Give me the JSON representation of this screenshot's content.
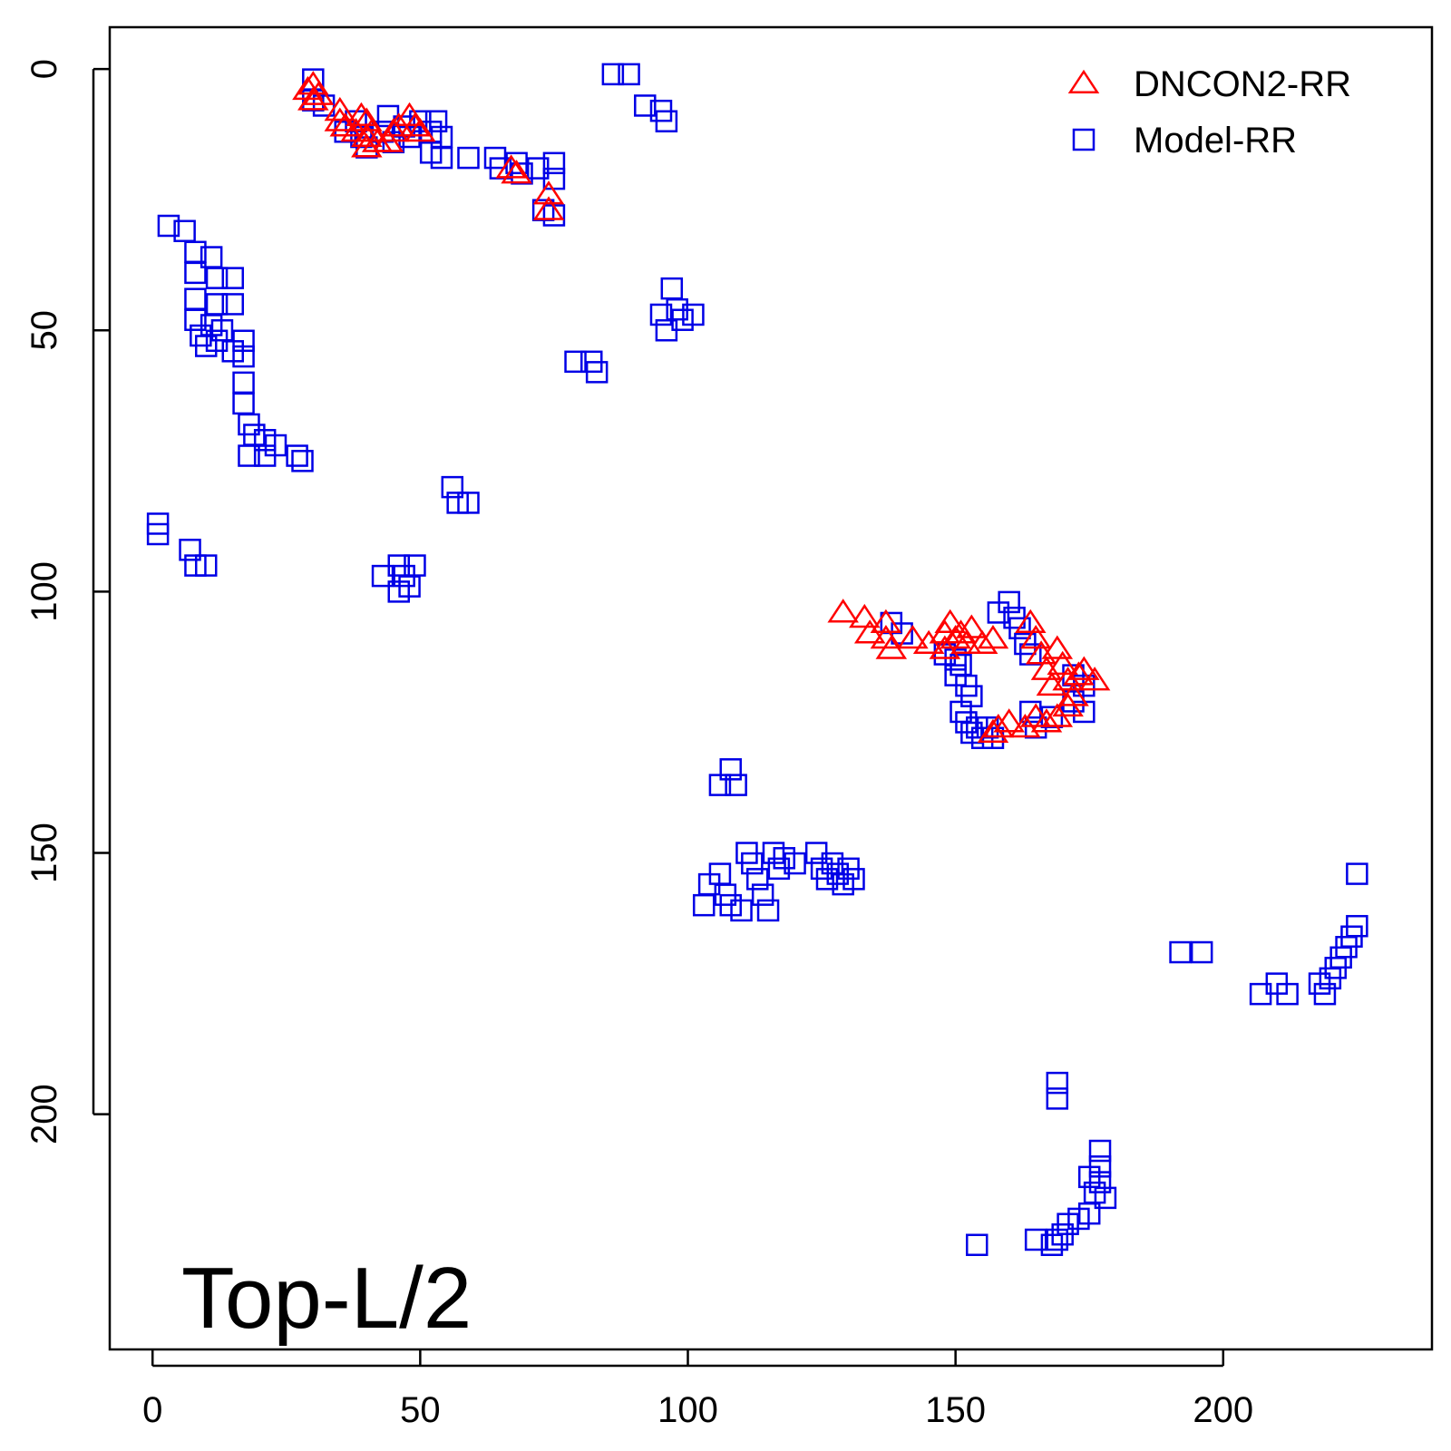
{
  "chart_data": {
    "type": "scatter",
    "title": "",
    "xlabel": "",
    "ylabel": "",
    "xlim": [
      -8,
      239
    ],
    "ylim": [
      245,
      -8
    ],
    "y_reversed": true,
    "grid": false,
    "legend_position": "top-right",
    "x_ticks": [
      "0",
      "50",
      "100",
      "150",
      "200"
    ],
    "y_ticks": [
      "0",
      "50",
      "100",
      "150",
      "200"
    ],
    "annotation": "Top-L/2",
    "colors": {
      "dncon2": "#ff0000",
      "model": "#0000e6"
    },
    "series": [
      {
        "name": "DNCON2-RR",
        "marker": "triangle",
        "points": [
          [
            29,
            4
          ],
          [
            30,
            3
          ],
          [
            30,
            6
          ],
          [
            31,
            5
          ],
          [
            35,
            8
          ],
          [
            35,
            10
          ],
          [
            36,
            11
          ],
          [
            38,
            12
          ],
          [
            39,
            9
          ],
          [
            40,
            10
          ],
          [
            40,
            13
          ],
          [
            41,
            12
          ],
          [
            42,
            14
          ],
          [
            40,
            15
          ],
          [
            44,
            14
          ],
          [
            45,
            12
          ],
          [
            46,
            11
          ],
          [
            48,
            9
          ],
          [
            49,
            11
          ],
          [
            50,
            12
          ],
          [
            67,
            19
          ],
          [
            68,
            20
          ],
          [
            74,
            24
          ],
          [
            74,
            27
          ],
          [
            129,
            104
          ],
          [
            133,
            105
          ],
          [
            134,
            108
          ],
          [
            137,
            106
          ],
          [
            137,
            109
          ],
          [
            138,
            111
          ],
          [
            142,
            109
          ],
          [
            145,
            110
          ],
          [
            148,
            108
          ],
          [
            148,
            111
          ],
          [
            149,
            106
          ],
          [
            150,
            109
          ],
          [
            151,
            108
          ],
          [
            152,
            110
          ],
          [
            153,
            107
          ],
          [
            155,
            110
          ],
          [
            157,
            109
          ],
          [
            164,
            106
          ],
          [
            165,
            109
          ],
          [
            166,
            112
          ],
          [
            167,
            115
          ],
          [
            168,
            118
          ],
          [
            169,
            111
          ],
          [
            170,
            114
          ],
          [
            171,
            117
          ],
          [
            172,
            120
          ],
          [
            173,
            116
          ],
          [
            174,
            115
          ],
          [
            176,
            117
          ],
          [
            171,
            122
          ],
          [
            169,
            124
          ],
          [
            167,
            125
          ],
          [
            165,
            124
          ],
          [
            163,
            126
          ],
          [
            160,
            125
          ],
          [
            158,
            126
          ],
          [
            157,
            127
          ]
        ]
      },
      {
        "name": "Model-RR",
        "marker": "square",
        "points": [
          [
            30,
            2
          ],
          [
            30,
            6
          ],
          [
            32,
            7
          ],
          [
            36,
            12
          ],
          [
            38,
            10
          ],
          [
            39,
            13
          ],
          [
            40,
            15
          ],
          [
            43,
            12
          ],
          [
            44,
            9
          ],
          [
            45,
            14
          ],
          [
            47,
            11
          ],
          [
            48,
            13
          ],
          [
            50,
            10
          ],
          [
            52,
            12
          ],
          [
            53,
            10
          ],
          [
            54,
            13
          ],
          [
            52,
            16
          ],
          [
            54,
            17
          ],
          [
            59,
            17
          ],
          [
            64,
            17
          ],
          [
            65,
            19
          ],
          [
            68,
            18
          ],
          [
            69,
            20
          ],
          [
            72,
            19
          ],
          [
            75,
            18
          ],
          [
            75,
            21
          ],
          [
            73,
            27
          ],
          [
            75,
            28
          ],
          [
            86,
            1
          ],
          [
            89,
            1
          ],
          [
            92,
            7
          ],
          [
            95,
            8
          ],
          [
            96,
            10
          ],
          [
            3,
            30
          ],
          [
            6,
            31
          ],
          [
            8,
            35
          ],
          [
            11,
            36
          ],
          [
            8,
            39
          ],
          [
            12,
            40
          ],
          [
            15,
            40
          ],
          [
            8,
            44
          ],
          [
            12,
            45
          ],
          [
            15,
            45
          ],
          [
            8,
            48
          ],
          [
            11,
            49
          ],
          [
            13,
            50
          ],
          [
            9,
            51
          ],
          [
            12,
            52
          ],
          [
            17,
            52
          ],
          [
            10,
            53
          ],
          [
            15,
            54
          ],
          [
            17,
            55
          ],
          [
            17,
            60
          ],
          [
            17,
            64
          ],
          [
            18,
            68
          ],
          [
            19,
            70
          ],
          [
            21,
            71
          ],
          [
            18,
            74
          ],
          [
            21,
            74
          ],
          [
            23,
            72
          ],
          [
            27,
            74
          ],
          [
            28,
            75
          ],
          [
            1,
            87
          ],
          [
            1,
            89
          ],
          [
            7,
            92
          ],
          [
            8,
            95
          ],
          [
            10,
            95
          ],
          [
            43,
            97
          ],
          [
            46,
            95
          ],
          [
            47,
            97
          ],
          [
            48,
            99
          ],
          [
            46,
            100
          ],
          [
            49,
            95
          ],
          [
            56,
            80
          ],
          [
            57,
            83
          ],
          [
            59,
            83
          ],
          [
            79,
            56
          ],
          [
            82,
            56
          ],
          [
            83,
            58
          ],
          [
            97,
            42
          ],
          [
            98,
            46
          ],
          [
            95,
            47
          ],
          [
            96,
            50
          ],
          [
            99,
            48
          ],
          [
            101,
            47
          ],
          [
            103,
            160
          ],
          [
            104,
            156
          ],
          [
            106,
            154
          ],
          [
            107,
            158
          ],
          [
            108,
            160
          ],
          [
            110,
            161
          ],
          [
            111,
            150
          ],
          [
            112,
            152
          ],
          [
            113,
            155
          ],
          [
            114,
            158
          ],
          [
            115,
            161
          ],
          [
            116,
            150
          ],
          [
            117,
            153
          ],
          [
            118,
            151
          ],
          [
            120,
            152
          ],
          [
            106,
            137
          ],
          [
            108,
            134
          ],
          [
            109,
            137
          ],
          [
            124,
            150
          ],
          [
            125,
            153
          ],
          [
            126,
            155
          ],
          [
            127,
            152
          ],
          [
            128,
            154
          ],
          [
            129,
            156
          ],
          [
            130,
            153
          ],
          [
            131,
            155
          ],
          [
            138,
            106
          ],
          [
            140,
            108
          ],
          [
            148,
            112
          ],
          [
            150,
            113
          ],
          [
            151,
            114
          ],
          [
            150,
            116
          ],
          [
            152,
            118
          ],
          [
            153,
            120
          ],
          [
            151,
            123
          ],
          [
            152,
            125
          ],
          [
            153,
            127
          ],
          [
            154,
            126
          ],
          [
            155,
            128
          ],
          [
            156,
            126
          ],
          [
            157,
            128
          ],
          [
            158,
            104
          ],
          [
            160,
            102
          ],
          [
            161,
            105
          ],
          [
            162,
            107
          ],
          [
            163,
            110
          ],
          [
            164,
            112
          ],
          [
            172,
            116
          ],
          [
            174,
            118
          ],
          [
            172,
            121
          ],
          [
            174,
            123
          ],
          [
            168,
            124
          ],
          [
            165,
            126
          ],
          [
            164,
            123
          ],
          [
            192,
            169
          ],
          [
            196,
            169
          ],
          [
            207,
            177
          ],
          [
            210,
            175
          ],
          [
            212,
            177
          ],
          [
            218,
            175
          ],
          [
            219,
            177
          ],
          [
            220,
            174
          ],
          [
            221,
            172
          ],
          [
            222,
            170
          ],
          [
            223,
            168
          ],
          [
            224,
            166
          ],
          [
            225,
            164
          ],
          [
            225,
            154
          ],
          [
            169,
            194
          ],
          [
            169,
            197
          ],
          [
            177,
            207
          ],
          [
            177,
            210
          ],
          [
            176,
            215
          ],
          [
            178,
            216
          ],
          [
            175,
            219
          ],
          [
            173,
            220
          ],
          [
            171,
            221
          ],
          [
            170,
            223
          ],
          [
            169,
            224
          ],
          [
            168,
            225
          ],
          [
            165,
            224
          ],
          [
            154,
            225
          ],
          [
            175,
            212
          ],
          [
            177,
            213
          ]
        ]
      }
    ]
  }
}
